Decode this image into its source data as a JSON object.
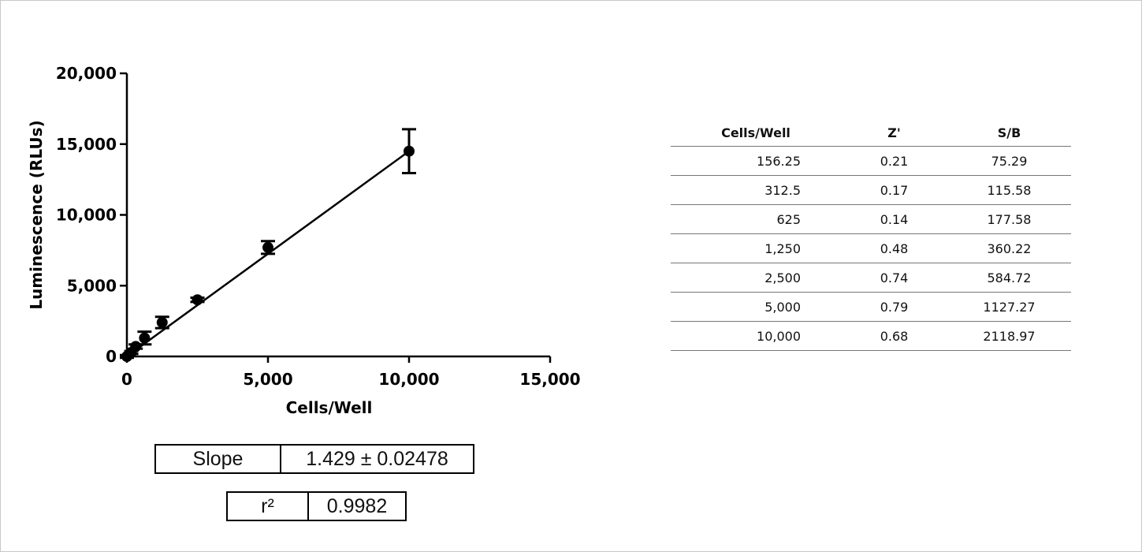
{
  "chart_data": {
    "type": "scatter",
    "title": "",
    "xlabel": "Cells/Well",
    "ylabel": "Luminescence (RLUs)",
    "xlim": [
      0,
      15000
    ],
    "ylim": [
      0,
      20000
    ],
    "x_ticks": [
      "0",
      "5,000",
      "10,000",
      "15,000"
    ],
    "y_ticks": [
      "0",
      "5,000",
      "10,000",
      "15,000",
      "20,000"
    ],
    "grid": false,
    "legend": "none",
    "series": [
      {
        "points": [
          {
            "x": 0,
            "y": 0,
            "err": 100
          },
          {
            "x": 156.25,
            "y": 280,
            "err": 100
          },
          {
            "x": 312.5,
            "y": 700,
            "err": 150
          },
          {
            "x": 625,
            "y": 1300,
            "err": 450
          },
          {
            "x": 1250,
            "y": 2400,
            "err": 400
          },
          {
            "x": 2500,
            "y": 4000,
            "err": 150
          },
          {
            "x": 5000,
            "y": 7700,
            "err": 450
          },
          {
            "x": 10000,
            "y": 14500,
            "err": 1550
          }
        ],
        "fit_line": {
          "x0": 0,
          "y0": 0,
          "x1": 10000,
          "y1": 14500
        }
      }
    ],
    "color": "#000000"
  },
  "stats": {
    "slope_label": "Slope",
    "slope_value": "1.429 ± 0.02478",
    "r2_label": "r²",
    "r2_value": "0.9982"
  },
  "table": {
    "headers": [
      "Cells/Well",
      "Z'",
      "S/B"
    ],
    "rows": [
      [
        "156.25",
        "0.21",
        "75.29"
      ],
      [
        "312.5",
        "0.17",
        "115.58"
      ],
      [
        "625",
        "0.14",
        "177.58"
      ],
      [
        "1,250",
        "0.48",
        "360.22"
      ],
      [
        "2,500",
        "0.74",
        "584.72"
      ],
      [
        "5,000",
        "0.79",
        "1127.27"
      ],
      [
        "10,000",
        "0.68",
        "2118.97"
      ]
    ]
  }
}
